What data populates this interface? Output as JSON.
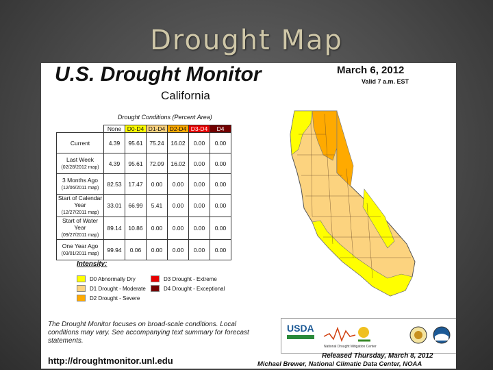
{
  "slide_title": "Drought Map",
  "map": {
    "title": "U.S. Drought Monitor",
    "state": "California",
    "date": "March 6, 2012",
    "valid": "Valid 7 a.m. EST",
    "table_caption": "Drought Conditions (Percent Area)",
    "headers": [
      "None",
      "D0-D4",
      "D1-D4",
      "D2-D4",
      "D3-D4",
      "D4"
    ],
    "rows": [
      {
        "label": "Current",
        "sub": "",
        "values": [
          "4.39",
          "95.61",
          "75.24",
          "16.02",
          "0.00",
          "0.00"
        ]
      },
      {
        "label": "Last Week",
        "sub": "(02/28/2012 map)",
        "values": [
          "4.39",
          "95.61",
          "72.09",
          "16.02",
          "0.00",
          "0.00"
        ]
      },
      {
        "label": "3 Months Ago",
        "sub": "(12/06/2011 map)",
        "values": [
          "82.53",
          "17.47",
          "0.00",
          "0.00",
          "0.00",
          "0.00"
        ]
      },
      {
        "label": "Start of Calendar Year",
        "sub": "(12/27/2011 map)",
        "values": [
          "33.01",
          "66.99",
          "5.41",
          "0.00",
          "0.00",
          "0.00"
        ]
      },
      {
        "label": "Start of Water Year",
        "sub": "(09/27/2011 map)",
        "values": [
          "89.14",
          "10.86",
          "0.00",
          "0.00",
          "0.00",
          "0.00"
        ]
      },
      {
        "label": "One Year Ago",
        "sub": "(03/01/2011 map)",
        "values": [
          "99.94",
          "0.06",
          "0.00",
          "0.00",
          "0.00",
          "0.00"
        ]
      }
    ],
    "intensity_title": "Intensity:",
    "legend": [
      {
        "label": "D0 Abnormally Dry",
        "color": "#ffff00"
      },
      {
        "label": "D1 Drought - Moderate",
        "color": "#fcd37f"
      },
      {
        "label": "D2 Drought - Severe",
        "color": "#ffaa00"
      },
      {
        "label": "D3 Drought - Extreme",
        "color": "#e60000"
      },
      {
        "label": "D4 Drought - Exceptional",
        "color": "#730000"
      }
    ],
    "note": "The Drought Monitor focuses on broad-scale conditions. Local conditions may vary. See accompanying text summary for forecast statements.",
    "url": "http://droughtmonitor.unl.edu",
    "logos": {
      "usda": "USDA",
      "center": "National Drought Mitigation Center"
    },
    "released": "Released Thursday, March 8, 2012",
    "author": "Michael Brewer, National Climatic Data Center, NOAA"
  }
}
